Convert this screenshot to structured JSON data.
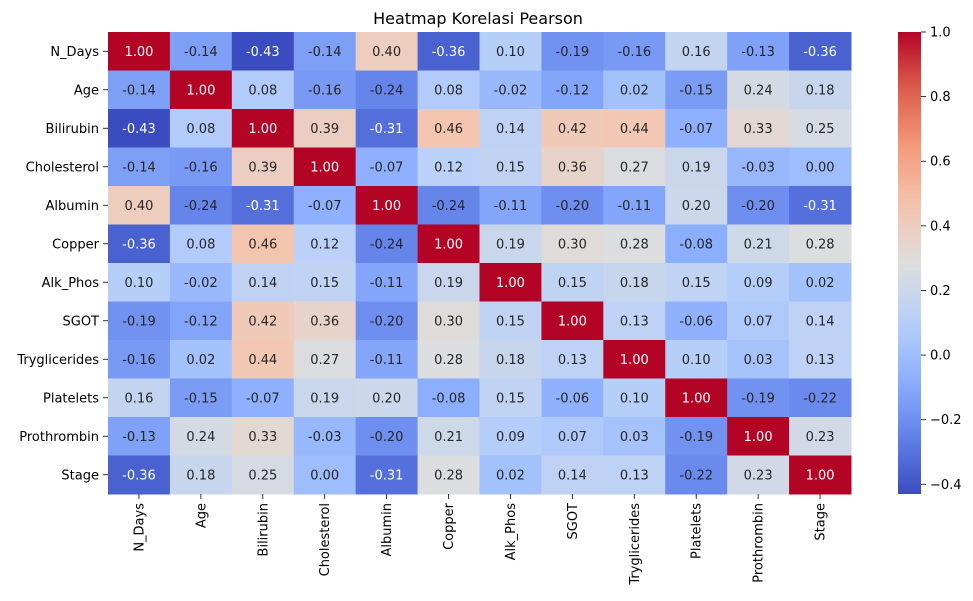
{
  "chart_data": {
    "type": "heatmap",
    "title": "Heatmap Korelasi Pearson",
    "colormap": "coolwarm",
    "xlabel": "",
    "ylabel": "",
    "labels": [
      "N_Days",
      "Age",
      "Bilirubin",
      "Cholesterol",
      "Albumin",
      "Copper",
      "Alk_Phos",
      "SGOT",
      "Tryglicerides",
      "Platelets",
      "Prothrombin",
      "Stage"
    ],
    "matrix": [
      [
        1.0,
        -0.14,
        -0.43,
        -0.14,
        0.4,
        -0.36,
        0.1,
        -0.19,
        -0.16,
        0.16,
        -0.13,
        -0.36
      ],
      [
        -0.14,
        1.0,
        0.08,
        -0.16,
        -0.24,
        0.08,
        -0.02,
        -0.12,
        0.02,
        -0.15,
        0.24,
        0.18
      ],
      [
        -0.43,
        0.08,
        1.0,
        0.39,
        -0.31,
        0.46,
        0.14,
        0.42,
        0.44,
        -0.07,
        0.33,
        0.25
      ],
      [
        -0.14,
        -0.16,
        0.39,
        1.0,
        -0.07,
        0.12,
        0.15,
        0.36,
        0.27,
        0.19,
        -0.03,
        0.0
      ],
      [
        0.4,
        -0.24,
        -0.31,
        -0.07,
        1.0,
        -0.24,
        -0.11,
        -0.2,
        -0.11,
        0.2,
        -0.2,
        -0.31
      ],
      [
        -0.36,
        0.08,
        0.46,
        0.12,
        -0.24,
        1.0,
        0.19,
        0.3,
        0.28,
        -0.08,
        0.21,
        0.28
      ],
      [
        0.1,
        -0.02,
        0.14,
        0.15,
        -0.11,
        0.19,
        1.0,
        0.15,
        0.18,
        0.15,
        0.09,
        0.02
      ],
      [
        -0.19,
        -0.12,
        0.42,
        0.36,
        -0.2,
        0.3,
        0.15,
        1.0,
        0.13,
        -0.06,
        0.07,
        0.14
      ],
      [
        -0.16,
        0.02,
        0.44,
        0.27,
        -0.11,
        0.28,
        0.18,
        0.13,
        1.0,
        0.1,
        0.03,
        0.13
      ],
      [
        0.16,
        -0.15,
        -0.07,
        0.19,
        0.2,
        -0.08,
        0.15,
        -0.06,
        0.1,
        1.0,
        -0.19,
        -0.22
      ],
      [
        -0.13,
        0.24,
        0.33,
        -0.03,
        -0.2,
        0.21,
        0.09,
        0.07,
        0.03,
        -0.19,
        1.0,
        0.23
      ],
      [
        -0.36,
        0.18,
        0.25,
        0.0,
        -0.31,
        0.28,
        0.02,
        0.14,
        0.13,
        -0.22,
        0.23,
        1.0
      ]
    ],
    "vmin": -0.43,
    "vmax": 1.0,
    "colorbar_ticks": [
      1.0,
      0.8,
      0.6,
      0.4,
      0.2,
      0.0,
      -0.2,
      -0.4
    ],
    "colorbar_tick_labels": [
      "1.0",
      "0.8",
      "0.6",
      "0.4",
      "0.2",
      "0.0",
      "−0.2",
      "−0.4"
    ]
  }
}
